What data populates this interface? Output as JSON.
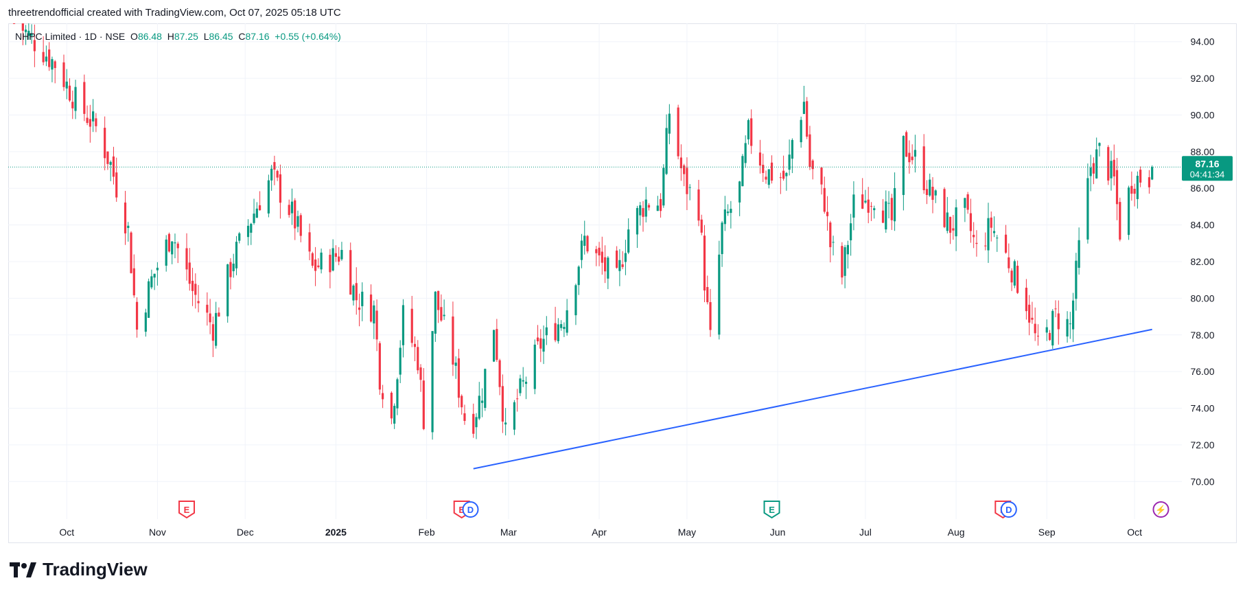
{
  "attribution": "threetrendofficial created with TradingView.com, Oct 07, 2025 05:18 UTC",
  "legend": {
    "symbol": "NHPC Limited · 1D · NSE",
    "o_label": "O",
    "o_value": "86.48",
    "h_label": "H",
    "h_value": "87.25",
    "l_label": "L",
    "l_value": "86.45",
    "c_label": "C",
    "c_value": "87.16",
    "change": "+0.55 (+0.64%)"
  },
  "price_badge": {
    "price": "87.16",
    "countdown": "04:41:34"
  },
  "brand": {
    "logo_icon": "tradingview-logo-icon",
    "name": "TradingView"
  },
  "colors": {
    "up": "#089981",
    "down": "#f23645",
    "trendline": "#2962ff",
    "grid": "#f0f3fa",
    "event_purple": "#9c27b0"
  },
  "events": [
    {
      "month": "Nov",
      "offset_days": 10,
      "kind": "earnings",
      "letter": "E",
      "color": "#f23645"
    },
    {
      "month": "Feb",
      "offset_days": 12,
      "kind": "earnings",
      "letter": "E",
      "color": "#f23645"
    },
    {
      "month": "Feb",
      "offset_days": 15,
      "kind": "dividend",
      "letter": "D",
      "color": "#2962ff"
    },
    {
      "month": "May",
      "offset_days": 29,
      "kind": "earnings",
      "letter": "E",
      "color": "#089981"
    },
    {
      "month": "Aug",
      "offset_days": 16,
      "kind": "earnings",
      "letter": "E",
      "color": "#f23645"
    },
    {
      "month": "Aug",
      "offset_days": 18,
      "kind": "dividend",
      "letter": "D",
      "color": "#2962ff"
    },
    {
      "month": "Oct",
      "offset_days": 9,
      "kind": "split",
      "letter": "⚡",
      "color": "#9c27b0"
    }
  ],
  "chart_data": {
    "type": "candlestick",
    "symbol": "NHPC Limited",
    "interval": "1D",
    "exchange": "NSE",
    "y_axis": {
      "side": "right",
      "range": [
        69.0,
        95.0
      ],
      "ticks": [
        "70.00",
        "72.00",
        "74.00",
        "76.00",
        "78.00",
        "80.00",
        "82.00",
        "84.00",
        "86.00",
        "88.00",
        "90.00",
        "92.00",
        "94.00"
      ]
    },
    "x_axis": {
      "ticks": [
        "Oct",
        "Nov",
        "Dec",
        "2025",
        "Feb",
        "Mar",
        "Apr",
        "May",
        "Jun",
        "Jul",
        "Aug",
        "Sep",
        "Oct"
      ]
    },
    "last_price": 87.16,
    "grid": true,
    "candle_anchors": [
      {
        "date": "2024-09-13",
        "close": 95.2
      },
      {
        "date": "2024-09-20",
        "close": 94.0
      },
      {
        "date": "2024-09-27",
        "close": 92.8
      },
      {
        "date": "2024-10-04",
        "close": 90.8
      },
      {
        "date": "2024-10-11",
        "close": 89.3
      },
      {
        "date": "2024-10-16",
        "close": 87.3
      },
      {
        "date": "2024-10-22",
        "close": 83.7
      },
      {
        "date": "2024-10-25",
        "close": 78.3
      },
      {
        "date": "2024-10-30",
        "close": 81.0
      },
      {
        "date": "2024-11-06",
        "close": 83.6
      },
      {
        "date": "2024-11-13",
        "close": 80.4
      },
      {
        "date": "2024-11-20",
        "close": 78.4
      },
      {
        "date": "2024-11-27",
        "close": 82.2
      },
      {
        "date": "2024-12-06",
        "close": 85.4
      },
      {
        "date": "2024-12-10",
        "close": 86.7
      },
      {
        "date": "2024-12-17",
        "close": 84.6
      },
      {
        "date": "2024-12-24",
        "close": 81.6
      },
      {
        "date": "2025-01-03",
        "close": 82.5
      },
      {
        "date": "2025-01-08",
        "close": 80.0
      },
      {
        "date": "2025-01-14",
        "close": 79.4
      },
      {
        "date": "2025-01-16",
        "close": 75.8
      },
      {
        "date": "2025-01-20",
        "close": 73.4
      },
      {
        "date": "2025-01-24",
        "close": 79.0
      },
      {
        "date": "2025-01-29",
        "close": 76.7
      },
      {
        "date": "2025-01-31",
        "close": 73.5
      },
      {
        "date": "2025-02-04",
        "close": 80.0
      },
      {
        "date": "2025-02-10",
        "close": 76.7
      },
      {
        "date": "2025-02-14",
        "close": 73.5
      },
      {
        "date": "2025-02-17",
        "close": 73.4
      },
      {
        "date": "2025-02-20",
        "close": 75.0
      },
      {
        "date": "2025-02-24",
        "close": 78.6
      },
      {
        "date": "2025-02-28",
        "close": 72.5
      },
      {
        "date": "2025-03-04",
        "close": 74.5
      },
      {
        "date": "2025-03-12",
        "close": 77.5
      },
      {
        "date": "2025-03-20",
        "close": 79.0
      },
      {
        "date": "2025-03-27",
        "close": 83.2
      },
      {
        "date": "2025-04-01",
        "close": 82.0
      },
      {
        "date": "2025-04-07",
        "close": 80.9
      },
      {
        "date": "2025-04-11",
        "close": 83.8
      },
      {
        "date": "2025-04-17",
        "close": 85.3
      },
      {
        "date": "2025-04-22",
        "close": 85.2
      },
      {
        "date": "2025-04-25",
        "close": 90.2
      },
      {
        "date": "2025-04-30",
        "close": 86.3
      },
      {
        "date": "2025-05-05",
        "close": 85.0
      },
      {
        "date": "2025-05-07",
        "close": 81.0
      },
      {
        "date": "2025-05-09",
        "close": 77.7
      },
      {
        "date": "2025-05-13",
        "close": 83.8
      },
      {
        "date": "2025-05-19",
        "close": 86.0
      },
      {
        "date": "2025-05-22",
        "close": 89.0
      },
      {
        "date": "2025-05-28",
        "close": 86.9
      },
      {
        "date": "2025-06-04",
        "close": 86.5
      },
      {
        "date": "2025-06-06",
        "close": 88.6
      },
      {
        "date": "2025-06-10",
        "close": 90.7
      },
      {
        "date": "2025-06-12",
        "close": 87.2
      },
      {
        "date": "2025-06-17",
        "close": 85.3
      },
      {
        "date": "2025-06-19",
        "close": 82.9
      },
      {
        "date": "2025-06-23",
        "close": 81.2
      },
      {
        "date": "2025-06-27",
        "close": 85.1
      },
      {
        "date": "2025-07-04",
        "close": 85.6
      },
      {
        "date": "2025-07-10",
        "close": 84.2
      },
      {
        "date": "2025-07-14",
        "close": 88.3
      },
      {
        "date": "2025-07-18",
        "close": 87.6
      },
      {
        "date": "2025-07-24",
        "close": 85.5
      },
      {
        "date": "2025-07-30",
        "close": 83.9
      },
      {
        "date": "2025-08-04",
        "close": 84.7
      },
      {
        "date": "2025-08-08",
        "close": 82.6
      },
      {
        "date": "2025-08-13",
        "close": 84.0
      },
      {
        "date": "2025-08-19",
        "close": 82.0
      },
      {
        "date": "2025-08-25",
        "close": 79.8
      },
      {
        "date": "2025-08-29",
        "close": 77.2
      },
      {
        "date": "2025-09-04",
        "close": 79.0
      },
      {
        "date": "2025-09-09",
        "close": 78.5
      },
      {
        "date": "2025-09-12",
        "close": 82.7
      },
      {
        "date": "2025-09-16",
        "close": 87.2
      },
      {
        "date": "2025-09-19",
        "close": 88.0
      },
      {
        "date": "2025-09-24",
        "close": 86.4
      },
      {
        "date": "2025-09-26",
        "close": 83.7
      },
      {
        "date": "2025-09-30",
        "close": 86.4
      },
      {
        "date": "2025-10-03",
        "close": 86.6
      },
      {
        "date": "2025-10-06",
        "close": 86.61
      },
      {
        "date": "2025-10-07",
        "open": 86.48,
        "high": 87.25,
        "low": 86.45,
        "close": 87.16
      }
    ],
    "trendline": {
      "from": {
        "date": "2025-02-17",
        "price": 70.7
      },
      "to": {
        "date": "2025-10-07",
        "price": 78.3
      },
      "color": "#2962ff"
    }
  }
}
